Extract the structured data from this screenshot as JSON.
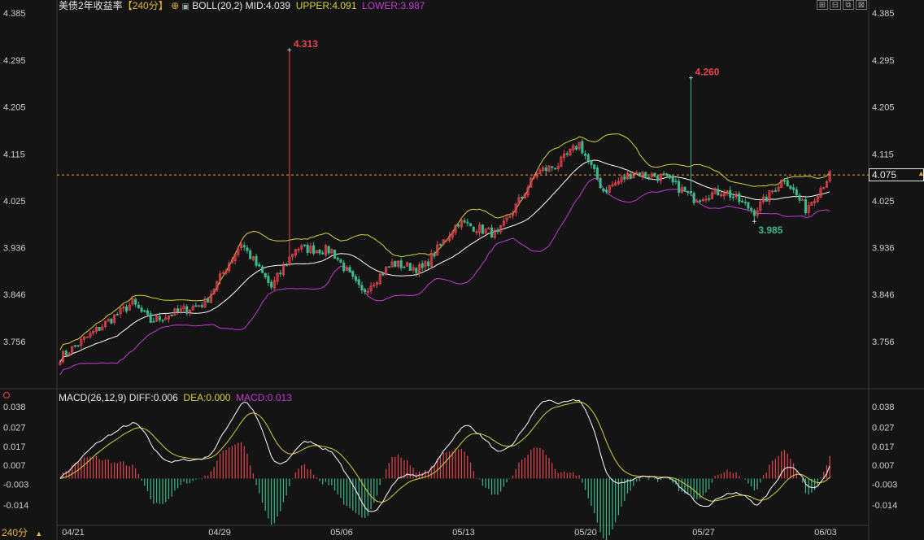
{
  "header": {
    "title": "美债2年收益率",
    "period": "【240分】",
    "boll_label": "BOLL(20,2)",
    "mid": "MID:4.039",
    "upper": "UPPER:4.091",
    "lower": "LOWER:3.987"
  },
  "macd_header": {
    "label": "MACD(26,12,9)",
    "diff": "DIFF:0.006",
    "dea": "DEA:0.000",
    "macd": "MACD:0.013"
  },
  "timeframe": "240分",
  "last_price": "4.075",
  "colors": {
    "background": "#141414",
    "up": "#e8454f",
    "down": "#3cb98a",
    "mid": "#ffffff",
    "upper": "#d7d23a",
    "lower": "#c43ad1",
    "price_line": "#f0a43a"
  },
  "chart_data": [
    {
      "type": "candlestick",
      "title": "美债2年收益率",
      "x_labels": [
        "04/21",
        "04/29",
        "05/06",
        "05/13",
        "05/20",
        "05/27",
        "06/03"
      ],
      "y_ticks": [
        "4.385",
        "4.295",
        "4.205",
        "4.115",
        "4.025",
        "3.936",
        "3.846",
        "3.756"
      ],
      "ylim": [
        3.66,
        4.385
      ],
      "annotations": [
        {
          "text": "4.313",
          "value": 4.313,
          "position_index": 76
        },
        {
          "text": "4.260",
          "value": 4.26,
          "position_index": 209
        },
        {
          "text": "3.985",
          "value": 3.985,
          "position_index": 230
        }
      ],
      "last_price": 4.075,
      "approx_key_points": [
        {
          "i": 0,
          "close": 3.725
        },
        {
          "i": 24,
          "close": 3.83
        },
        {
          "i": 30,
          "close": 3.795
        },
        {
          "i": 48,
          "close": 3.83
        },
        {
          "i": 60,
          "close": 3.945
        },
        {
          "i": 70,
          "close": 3.86
        },
        {
          "i": 78,
          "close": 3.935
        },
        {
          "i": 90,
          "close": 3.93
        },
        {
          "i": 100,
          "close": 3.85
        },
        {
          "i": 110,
          "close": 3.905
        },
        {
          "i": 120,
          "close": 3.895
        },
        {
          "i": 132,
          "close": 3.985
        },
        {
          "i": 145,
          "close": 3.96
        },
        {
          "i": 158,
          "close": 4.08
        },
        {
          "i": 165,
          "close": 4.095
        },
        {
          "i": 172,
          "close": 4.135
        },
        {
          "i": 180,
          "close": 4.045
        },
        {
          "i": 190,
          "close": 4.08
        },
        {
          "i": 200,
          "close": 4.07
        },
        {
          "i": 210,
          "close": 4.03
        },
        {
          "i": 220,
          "close": 4.045
        },
        {
          "i": 230,
          "close": 4.005
        },
        {
          "i": 240,
          "close": 4.07
        },
        {
          "i": 247,
          "close": 4.01
        },
        {
          "i": 255,
          "close": 4.075
        }
      ]
    },
    {
      "type": "macd",
      "y_ticks": [
        "0.038",
        "0.027",
        "0.017",
        "0.007",
        "-0.003",
        "-0.014"
      ],
      "ylim": [
        -0.024,
        0.038
      ],
      "diff": 0.006,
      "dea": 0.0,
      "macd": 0.013
    }
  ]
}
